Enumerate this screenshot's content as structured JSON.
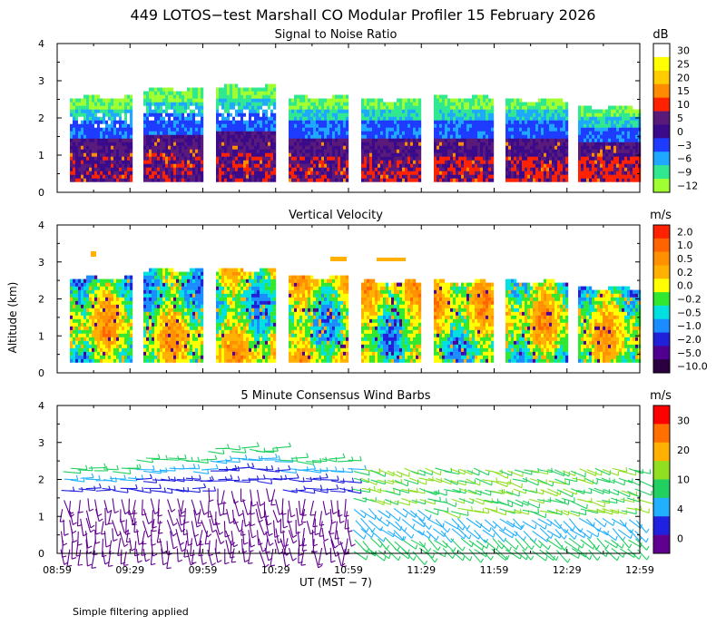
{
  "figure": {
    "title": "449 LOTOS−test Marshall CO Modular Profiler 15 February 2026",
    "ylabel": "Altitude (km)",
    "xlabel": "UT  (MST − 7)",
    "footnote": "Simple filtering applied",
    "x_ticks": [
      "08:59",
      "09:29",
      "09:59",
      "10:29",
      "10:59",
      "11:29",
      "11:59",
      "12:29",
      "12:59"
    ]
  },
  "chart_data": [
    {
      "type": "heatmap",
      "title": "Signal to Noise Ratio",
      "units": "dB",
      "ylim": [
        0,
        4
      ],
      "y_ticks": [
        "0",
        "1",
        "2",
        "3",
        "4"
      ],
      "colorbar": {
        "labels": [
          "30",
          "25",
          "20",
          "15",
          "10",
          "5",
          "0",
          "−3",
          "−6",
          "−9",
          "−12"
        ],
        "colors": [
          "#ffffff",
          "#ffff00",
          "#ffcc00",
          "#ff8c00",
          "#ff2200",
          "#5a1a7a",
          "#3a0a8a",
          "#1e3cff",
          "#1ea8ff",
          "#30e890",
          "#a0ff30"
        ]
      },
      "tops_km": [
        2.5,
        2.75,
        2.78,
        2.5,
        2.45,
        2.5,
        2.45,
        2.25
      ]
    },
    {
      "type": "heatmap",
      "title": "Vertical Velocity",
      "units": "m/s",
      "ylim": [
        0,
        4
      ],
      "y_ticks": [
        "0",
        "1",
        "2",
        "3",
        "4"
      ],
      "colorbar": {
        "labels": [
          "2.0",
          "1.0",
          "0.5",
          "0.2",
          "0.0",
          "−0.2",
          "−0.5",
          "−1.0",
          "−2.0",
          "−5.0",
          "−10.0"
        ],
        "colors": [
          "#ff2200",
          "#ff6400",
          "#ff9000",
          "#ffb000",
          "#ffff00",
          "#30e830",
          "#00e0e0",
          "#1a8cff",
          "#2020d8",
          "#500090",
          "#2a0040"
        ]
      },
      "tops_km": [
        2.5,
        2.75,
        2.75,
        2.55,
        2.4,
        2.4,
        2.4,
        2.25
      ]
    },
    {
      "type": "wind_barbs",
      "title": "5 Minute Consensus Wind Barbs",
      "units": "m/s",
      "ylim": [
        0,
        4
      ],
      "y_ticks": [
        "0",
        "1",
        "2",
        "3",
        "4"
      ],
      "colorbar": {
        "labels": [
          "30",
          "20",
          "10",
          "4",
          "0"
        ],
        "colors": [
          "#ff0000",
          "#ff7000",
          "#ffb000",
          "#90e020",
          "#20d060",
          "#20b0ff",
          "#2020e0",
          "#600090"
        ]
      },
      "tops_km": [
        2.5,
        2.75,
        2.9,
        2.6,
        2.4,
        2.3,
        2.3,
        2.3
      ]
    }
  ]
}
